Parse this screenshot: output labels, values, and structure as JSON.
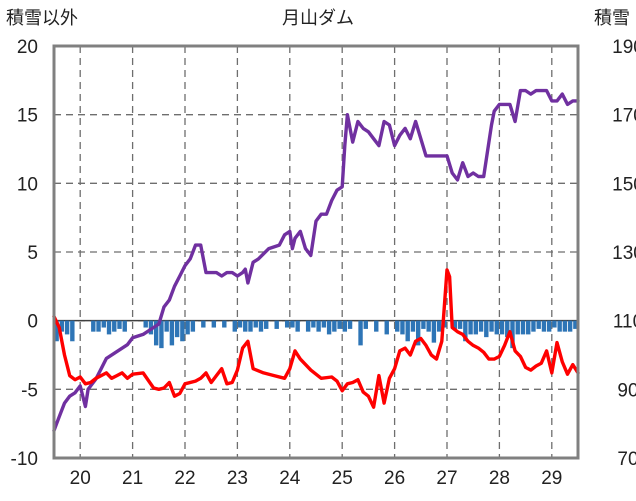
{
  "chart_data": {
    "type": "line",
    "title": "月山ダム",
    "left_axis_label": "積雪以外",
    "right_axis_label": "積雪",
    "x_ticks": [
      "20",
      "21",
      "22",
      "23",
      "24",
      "25",
      "26",
      "27",
      "28",
      "29"
    ],
    "left_ylim": [
      -10,
      20
    ],
    "left_y_ticks": [
      "-10",
      "-5",
      "0",
      "5",
      "10",
      "15",
      "20"
    ],
    "right_ylim": [
      70,
      190
    ],
    "right_y_ticks": [
      "70",
      "90",
      "110",
      "130",
      "150",
      "170",
      "190"
    ],
    "grid": true,
    "series": [
      {
        "axis": "right",
        "color": "#7030a0",
        "x": [
          19.5,
          19.6,
          19.7,
          19.8,
          19.9,
          20.0,
          20.1,
          20.15,
          20.2,
          20.3,
          20.4,
          20.5,
          20.7,
          20.9,
          21.0,
          21.2,
          21.4,
          21.5,
          21.6,
          21.7,
          21.8,
          21.9,
          22.0,
          22.1,
          22.15,
          22.2,
          22.3,
          22.4,
          22.5,
          22.6,
          22.7,
          22.8,
          22.9,
          23.0,
          23.1,
          23.15,
          23.2,
          23.3,
          23.4,
          23.6,
          23.8,
          23.9,
          24.0,
          24.05,
          24.1,
          24.2,
          24.3,
          24.4,
          24.5,
          24.6,
          24.7,
          24.8,
          24.9,
          25.0,
          25.05,
          25.1,
          25.2,
          25.3,
          25.4,
          25.5,
          25.6,
          25.7,
          25.8,
          25.9,
          26.0,
          26.1,
          26.2,
          26.3,
          26.4,
          26.6,
          26.8,
          26.9,
          27.0,
          27.1,
          27.2,
          27.3,
          27.4,
          27.5,
          27.6,
          27.7,
          27.8,
          27.85,
          27.9,
          28.0,
          28.1,
          28.2,
          28.3,
          28.4,
          28.5,
          28.6,
          28.7,
          28.8,
          28.9,
          29.0,
          29.1,
          29.2,
          29.3,
          29.4,
          29.5
        ],
        "y": [
          78,
          82,
          86,
          88,
          89,
          91,
          85,
          90,
          91,
          93,
          96,
          99,
          101,
          103,
          105,
          106,
          108,
          109,
          114,
          116,
          120,
          123,
          126,
          128,
          130,
          132,
          132,
          124,
          124,
          124,
          123,
          124,
          124,
          123,
          124,
          125,
          121,
          127,
          128,
          131,
          132,
          135,
          136,
          131,
          134,
          136,
          131,
          129,
          139,
          141,
          141,
          145,
          148,
          149,
          161,
          170,
          162,
          168,
          166,
          165,
          163,
          161,
          168,
          167,
          161,
          164,
          166,
          163,
          168,
          158,
          158,
          158,
          158,
          153,
          151,
          156,
          152,
          153,
          152,
          152,
          162,
          167,
          171,
          173,
          173,
          173,
          168,
          177,
          177,
          176,
          177,
          177,
          177,
          174,
          174,
          176,
          173,
          174,
          174
        ]
      },
      {
        "axis": "left",
        "color": "#ff0000",
        "x": [
          19.5,
          19.6,
          19.7,
          19.8,
          19.9,
          20.0,
          20.1,
          20.2,
          20.3,
          20.4,
          20.5,
          20.6,
          20.7,
          20.8,
          20.9,
          21.0,
          21.2,
          21.4,
          21.5,
          21.6,
          21.7,
          21.8,
          21.9,
          22.0,
          22.2,
          22.3,
          22.4,
          22.5,
          22.6,
          22.7,
          22.8,
          22.9,
          23.0,
          23.1,
          23.2,
          23.3,
          23.5,
          23.7,
          23.9,
          24.0,
          24.1,
          24.2,
          24.4,
          24.6,
          24.8,
          24.9,
          25.0,
          25.1,
          25.2,
          25.3,
          25.4,
          25.5,
          25.6,
          25.7,
          25.8,
          25.9,
          26.0,
          26.1,
          26.2,
          26.3,
          26.4,
          26.5,
          26.6,
          26.7,
          26.8,
          26.9,
          27.0,
          27.05,
          27.1,
          27.2,
          27.3,
          27.4,
          27.5,
          27.6,
          27.7,
          27.8,
          27.9,
          28.0,
          28.1,
          28.2,
          28.3,
          28.4,
          28.5,
          28.6,
          28.7,
          28.8,
          28.9,
          29.0,
          29.1,
          29.2,
          29.3,
          29.4,
          29.5
        ],
        "y": [
          0.3,
          -0.5,
          -2.5,
          -4,
          -4.3,
          -4.1,
          -4.6,
          -4.5,
          -4.2,
          -4.0,
          -3.8,
          -4.2,
          -4.0,
          -3.8,
          -4.2,
          -3.9,
          -3.8,
          -4.9,
          -5.0,
          -4.9,
          -4.5,
          -5.5,
          -5.3,
          -4.6,
          -4.4,
          -4.2,
          -3.8,
          -4.5,
          -4.0,
          -3.5,
          -4.6,
          -4.5,
          -3.6,
          -2.0,
          -1.5,
          -3.5,
          -3.8,
          -4.0,
          -4.2,
          -3.5,
          -2.2,
          -2.8,
          -3.6,
          -4.2,
          -4.1,
          -4.4,
          -5.1,
          -4.6,
          -4.5,
          -4.3,
          -5.2,
          -5.5,
          -6.3,
          -4.0,
          -6.0,
          -4.2,
          -3.5,
          -2.2,
          -2.0,
          -2.5,
          -1.5,
          -1.3,
          -1.8,
          -2.5,
          -2.8,
          -1.5,
          3.7,
          3.2,
          -0.5,
          -0.8,
          -1.0,
          -1.5,
          -1.8,
          -2.0,
          -2.3,
          -2.8,
          -2.8,
          -2.6,
          -1.8,
          -0.8,
          -2.2,
          -2.6,
          -3.4,
          -3.6,
          -3.3,
          -3.1,
          -2.2,
          -3.8,
          -1.6,
          -3.0,
          -3.9,
          -3.2,
          -3.8
        ]
      },
      {
        "axis": "left",
        "type": "bar",
        "color": "#2e75b6",
        "x": [
          19.55,
          19.65,
          19.75,
          19.85,
          20.25,
          20.35,
          20.45,
          20.55,
          20.65,
          20.75,
          20.85,
          21.25,
          21.35,
          21.45,
          21.55,
          21.65,
          21.75,
          21.85,
          21.95,
          22.05,
          22.15,
          22.35,
          22.55,
          22.75,
          22.95,
          23.05,
          23.15,
          23.25,
          23.35,
          23.45,
          23.55,
          23.75,
          23.95,
          24.05,
          24.15,
          24.35,
          24.45,
          24.55,
          24.65,
          24.75,
          24.85,
          24.95,
          25.05,
          25.15,
          25.35,
          25.45,
          25.65,
          25.85,
          26.05,
          26.15,
          26.25,
          26.35,
          26.45,
          26.55,
          26.65,
          26.75,
          26.85,
          26.95,
          27.15,
          27.25,
          27.35,
          27.45,
          27.55,
          27.65,
          27.75,
          27.85,
          27.95,
          28.05,
          28.15,
          28.25,
          28.35,
          28.45,
          28.55,
          28.65,
          28.75,
          28.85,
          28.95,
          29.05,
          29.15,
          29.25,
          29.35,
          29.45
        ],
        "y": [
          -1.5,
          -0.8,
          -1.0,
          -1.5,
          -0.8,
          -0.8,
          -0.5,
          -1.0,
          -0.8,
          -0.6,
          -0.8,
          -0.5,
          -1.0,
          -1.8,
          -2.0,
          -0.8,
          -1.8,
          -1.2,
          -1.5,
          -1.0,
          -0.8,
          -0.5,
          -0.5,
          -0.5,
          -0.8,
          -0.5,
          -0.8,
          -0.8,
          -0.5,
          -0.8,
          -0.6,
          -0.6,
          -0.5,
          -0.5,
          -0.8,
          -0.8,
          -0.5,
          -0.8,
          -0.5,
          -1.0,
          -0.8,
          -0.6,
          -0.8,
          -0.6,
          -1.8,
          -0.6,
          -0.8,
          -1.0,
          -0.8,
          -1.0,
          -1.5,
          -0.8,
          -1.8,
          -0.6,
          -0.8,
          -1.6,
          -0.8,
          -0.5,
          -0.6,
          -0.6,
          -1.5,
          -1.0,
          -1.0,
          -0.8,
          -1.2,
          -0.8,
          -1.0,
          -1.0,
          -1.2,
          -2.0,
          -1.0,
          -1.0,
          -1.0,
          -0.8,
          -0.6,
          -0.8,
          -0.8,
          -0.5,
          -0.8,
          -0.8,
          -0.8,
          -0.6
        ]
      }
    ]
  }
}
